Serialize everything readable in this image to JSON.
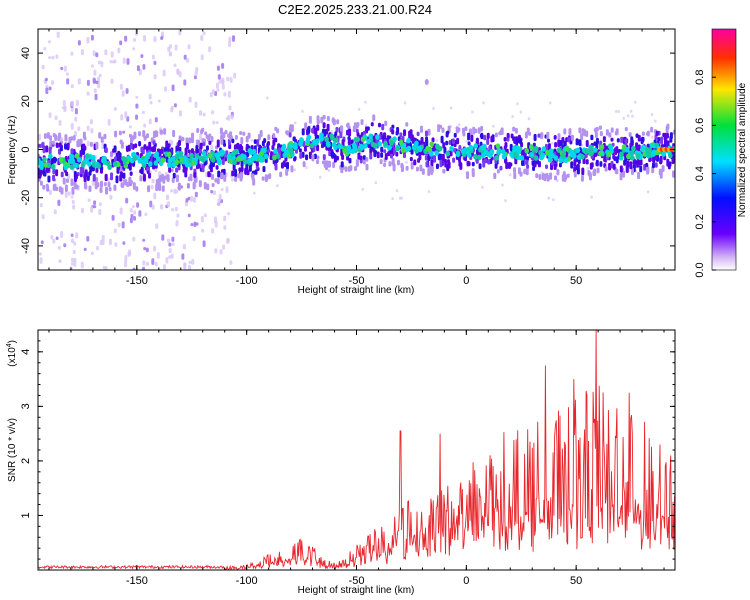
{
  "title": "C2E2.2025.233.21.00.R24",
  "chart_data": [
    {
      "type": "heatmap",
      "name": "spectrogram",
      "xlabel": "Height of straight line (km)",
      "ylabel": "Frequency (Hz)",
      "xlim": [
        -195,
        95
      ],
      "ylim": [
        -50,
        50
      ],
      "x_ticks": [
        -150,
        -100,
        -50,
        0,
        50
      ],
      "y_ticks": [
        -40,
        -20,
        0,
        20,
        40
      ],
      "colorbar": {
        "label": "Normalized spectral amplitude",
        "range": [
          0,
          1
        ],
        "ticks": [
          0.0,
          0.2,
          0.4,
          0.6,
          0.8
        ]
      },
      "ridge": {
        "x": [
          -195,
          -180,
          -160,
          -140,
          -120,
          -105,
          -95,
          -80,
          -70,
          -60,
          -55,
          -50,
          -40,
          -30,
          -20,
          -10,
          0,
          10,
          20,
          30,
          40,
          50,
          60,
          70,
          80,
          88,
          95
        ],
        "freq": [
          -5,
          -5,
          -5,
          -4,
          -4,
          -3,
          -3,
          0,
          4,
          3,
          0,
          2,
          4,
          2,
          0,
          0,
          -1,
          -1,
          -1,
          -1,
          -2,
          -2,
          -1,
          -1,
          -1,
          0,
          0
        ]
      },
      "scatter_x_range": [
        -195,
        -105
      ],
      "peak_x": 88,
      "stray_point": {
        "x": -18,
        "freq": 28
      }
    },
    {
      "type": "line",
      "name": "snr",
      "xlabel": "Height of straight line (km)",
      "ylabel": "SNR (10 * v/v)",
      "y_scale_label": "(x10",
      "y_scale_exp": "4",
      "xlim": [
        -195,
        95
      ],
      "ylim": [
        0,
        4.4
      ],
      "x_ticks": [
        -150,
        -100,
        -50,
        0,
        50
      ],
      "y_ticks": [
        1,
        2,
        3,
        4
      ],
      "color": "#e8252b",
      "envelope": {
        "x": [
          -195,
          -150,
          -110,
          -100,
          -90,
          -80,
          -75,
          -70,
          -65,
          -60,
          -55,
          -50,
          -45,
          -40,
          -35,
          -30,
          -25,
          -20,
          -10,
          0,
          10,
          20,
          30,
          40,
          50,
          60,
          70,
          80,
          90,
          95
        ],
        "y": [
          0.05,
          0.08,
          0.06,
          0.1,
          0.3,
          0.5,
          0.6,
          0.45,
          0.2,
          0.15,
          0.25,
          0.5,
          0.7,
          0.8,
          0.9,
          1.1,
          1.5,
          1.6,
          1.8,
          2.0,
          2.4,
          2.6,
          2.8,
          3.0,
          3.2,
          3.4,
          3.2,
          2.8,
          2.2,
          2.0
        ]
      },
      "spikes": [
        {
          "x": -30,
          "y": 2.55
        },
        {
          "x": -12,
          "y": 2.5
        },
        {
          "x": 36,
          "y": 3.75
        },
        {
          "x": 49,
          "y": 3.5
        },
        {
          "x": 59,
          "y": 4.4
        },
        {
          "x": 74,
          "y": 3.25
        },
        {
          "x": 88,
          "y": 2.3
        },
        {
          "x": 93,
          "y": 2.1
        }
      ]
    }
  ]
}
